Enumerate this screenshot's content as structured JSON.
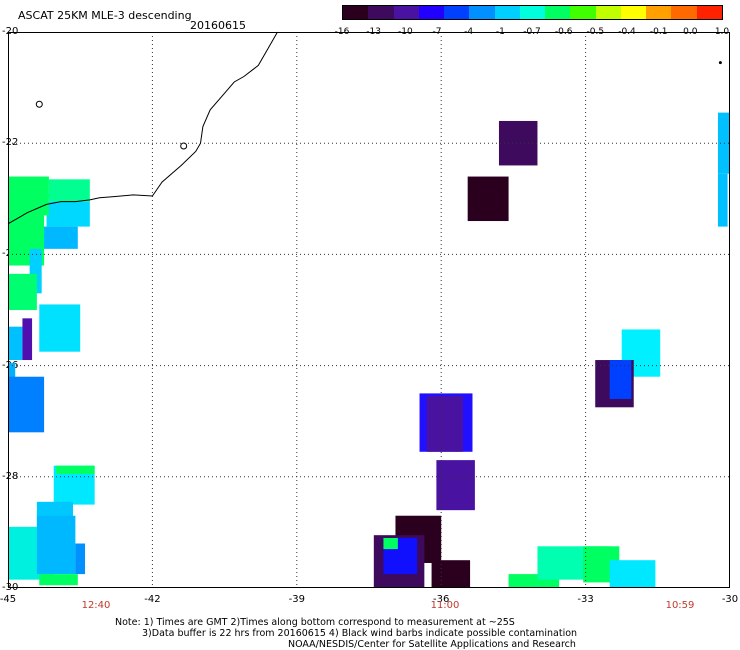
{
  "header": {
    "title": "ASCAT 25KM MLE-3 descending",
    "date": "20160615"
  },
  "colorbar": {
    "labels": [
      "-16",
      "-13",
      "-10",
      "-7",
      "-4",
      "-1",
      "-0.7",
      "-0.6",
      "-0.5",
      "-0.4",
      "-0.1",
      "0.0",
      "1.0"
    ],
    "colors": [
      "#2a001e",
      "#3d0a5e",
      "#4a12a0",
      "#2200ff",
      "#0040ff",
      "#0090ff",
      "#00d0ff",
      "#00ffdd",
      "#00ff60",
      "#40ff00",
      "#c0ff00",
      "#ffff00",
      "#ffa000",
      "#ff6a00",
      "#ff2200"
    ]
  },
  "axes": {
    "y_labels": [
      "-20",
      "-22",
      "-24",
      "-26",
      "-28",
      "-30"
    ],
    "x_labels": [
      "-45",
      "-42",
      "-39",
      "-36",
      "-33",
      "-30"
    ],
    "time_labels": [
      "12:40",
      "11:00",
      "10:59"
    ]
  },
  "footer": {
    "note1": "Note: 1) Times are GMT 2)Times along bottom correspond to measurement at ~25S",
    "note2": "3)Data buffer is 22 hrs from 20160615 4) Black wind barbs indicate possible contamination",
    "note3": "NOAA/NESDIS/Center for Satellite Applications and Research"
  },
  "map": {
    "lon_range": [
      -45,
      -30
    ],
    "lat_range": [
      -30,
      -20
    ],
    "coastline_color": "#000000",
    "cells": [
      {
        "lon": -44.15,
        "lat": -23.05,
        "w": 0.85,
        "h": 0.4,
        "color": "#00ff90"
      },
      {
        "lon": -44.2,
        "lat": -23.5,
        "w": 0.9,
        "h": 0.45,
        "color": "#00d8ff"
      },
      {
        "lon": -44.35,
        "lat": -23.9,
        "w": 0.8,
        "h": 0.4,
        "color": "#00b8ff"
      },
      {
        "lon": -45.0,
        "lat": -23.3,
        "w": 0.85,
        "h": 0.7,
        "color": "#00ff60"
      },
      {
        "lon": -45.0,
        "lat": -24.2,
        "w": 0.75,
        "h": 0.9,
        "color": "#00ff60"
      },
      {
        "lon": -44.55,
        "lat": -24.7,
        "w": 0.25,
        "h": 0.8,
        "color": "#00d0ff"
      },
      {
        "lon": -45.0,
        "lat": -25.0,
        "w": 0.6,
        "h": 0.65,
        "color": "#00ff70"
      },
      {
        "lon": -44.35,
        "lat": -25.75,
        "w": 0.85,
        "h": 0.85,
        "color": "#00e0ff"
      },
      {
        "lon": -45.0,
        "lat": -25.9,
        "w": 0.3,
        "h": 0.6,
        "color": "#00c0ff"
      },
      {
        "lon": -44.7,
        "lat": -25.9,
        "w": 0.2,
        "h": 0.75,
        "color": "#5010b0"
      },
      {
        "lon": -45.0,
        "lat": -26.3,
        "w": 0.15,
        "h": 0.35,
        "color": "#00b0ff"
      },
      {
        "lon": -45.0,
        "lat": -27.2,
        "w": 0.75,
        "h": 1.0,
        "color": "#0080ff"
      },
      {
        "lon": -44.05,
        "lat": -28.5,
        "w": 0.85,
        "h": 0.7,
        "color": "#00e8ff"
      },
      {
        "lon": -44.0,
        "lat": -27.95,
        "w": 0.8,
        "h": 0.15,
        "color": "#00ff60"
      },
      {
        "lon": -44.4,
        "lat": -28.95,
        "w": 0.75,
        "h": 0.5,
        "color": "#00c8ff"
      },
      {
        "lon": -45.0,
        "lat": -29.85,
        "w": 0.95,
        "h": 0.95,
        "color": "#00f0e0"
      },
      {
        "lon": -44.4,
        "lat": -29.75,
        "w": 0.8,
        "h": 1.05,
        "color": "#00b8ff"
      },
      {
        "lon": -43.6,
        "lat": -29.75,
        "w": 0.2,
        "h": 0.55,
        "color": "#0090ff"
      },
      {
        "lon": -44.35,
        "lat": -29.95,
        "w": 0.8,
        "h": 0.2,
        "color": "#00ff60"
      },
      {
        "lon": -36.45,
        "lat": -27.55,
        "w": 1.1,
        "h": 1.05,
        "color": "#2010ff"
      },
      {
        "lon": -36.3,
        "lat": -27.55,
        "w": 0.75,
        "h": 1.0,
        "color": "#4a12a0"
      },
      {
        "lon": -36.1,
        "lat": -28.6,
        "w": 0.8,
        "h": 0.9,
        "color": "#4a12a0"
      },
      {
        "lon": -36.95,
        "lat": -29.55,
        "w": 0.95,
        "h": 0.85,
        "color": "#2a001e"
      },
      {
        "lon": -37.4,
        "lat": -30.0,
        "w": 1.05,
        "h": 0.95,
        "color": "#3d0a5e"
      },
      {
        "lon": -37.2,
        "lat": -29.75,
        "w": 0.7,
        "h": 0.65,
        "color": "#1010ff"
      },
      {
        "lon": -37.2,
        "lat": -29.3,
        "w": 0.3,
        "h": 0.2,
        "color": "#00ff60"
      },
      {
        "lon": -36.2,
        "lat": -30.0,
        "w": 0.8,
        "h": 0.5,
        "color": "#2a001e"
      },
      {
        "lon": -34.8,
        "lat": -22.4,
        "w": 0.8,
        "h": 0.8,
        "color": "#3d0a5e"
      },
      {
        "lon": -35.45,
        "lat": -23.4,
        "w": 0.85,
        "h": 0.8,
        "color": "#2a001e"
      },
      {
        "lon": -30.25,
        "lat": -22.55,
        "w": 0.25,
        "h": 1.1,
        "color": "#00c0ff"
      },
      {
        "lon": -30.25,
        "lat": -23.5,
        "w": 0.2,
        "h": 0.95,
        "color": "#00c0ff"
      },
      {
        "lon": -32.25,
        "lat": -26.2,
        "w": 0.8,
        "h": 0.85,
        "color": "#00f0ff"
      },
      {
        "lon": -32.8,
        "lat": -26.75,
        "w": 0.8,
        "h": 0.85,
        "color": "#3d0a5e"
      },
      {
        "lon": -32.5,
        "lat": -26.6,
        "w": 0.45,
        "h": 0.7,
        "color": "#0040ff"
      },
      {
        "lon": -34.6,
        "lat": -30.0,
        "w": 1.05,
        "h": 0.25,
        "color": "#00ff60"
      },
      {
        "lon": -34.0,
        "lat": -29.85,
        "w": 1.5,
        "h": 0.6,
        "color": "#00ffb0"
      },
      {
        "lon": -33.05,
        "lat": -29.9,
        "w": 0.75,
        "h": 0.65,
        "color": "#00ff60"
      },
      {
        "lon": -32.5,
        "lat": -30.0,
        "w": 0.95,
        "h": 0.5,
        "color": "#00e8ff"
      }
    ]
  }
}
